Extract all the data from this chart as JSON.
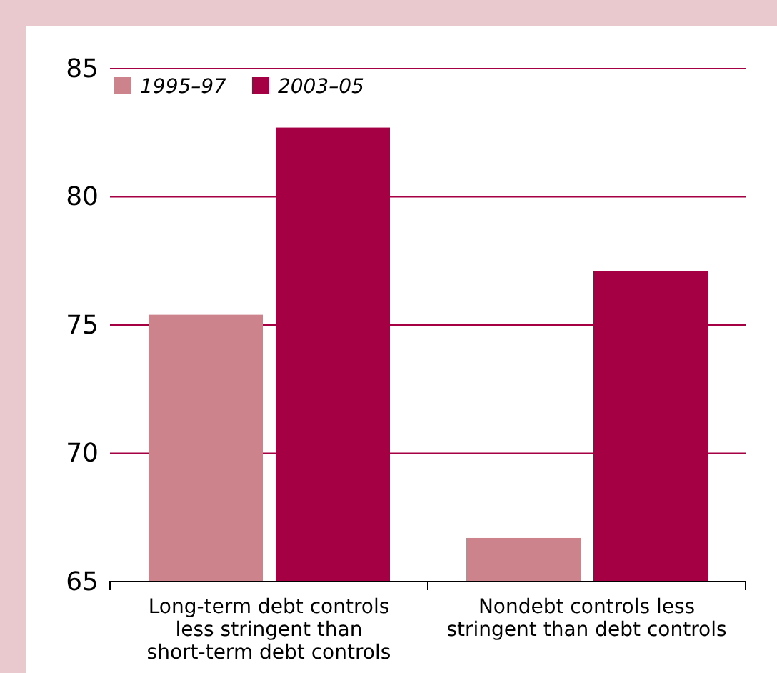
{
  "chart_data": {
    "type": "bar",
    "categories": [
      "Long-term debt controls less stringent than short-term debt controls",
      "Nondebt controls less stringent than debt controls"
    ],
    "series": [
      {
        "name": "1995–97",
        "color": "#cd838b",
        "values": [
          75.4,
          66.7
        ]
      },
      {
        "name": "2003–05",
        "color": "#a50044",
        "values": [
          82.7,
          77.1
        ]
      }
    ],
    "ylim": [
      65,
      85
    ],
    "yticks": [
      65,
      70,
      75,
      80,
      85
    ],
    "grid": "y",
    "legend": "top left"
  }
}
